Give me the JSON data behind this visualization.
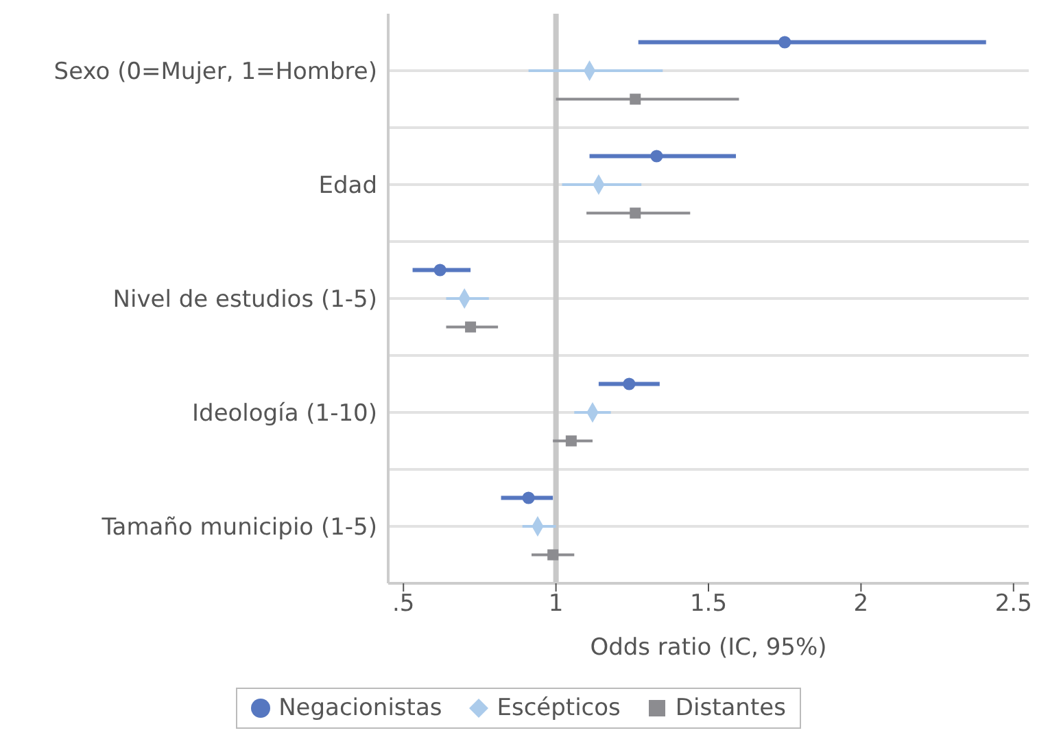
{
  "chart_data": {
    "type": "scatter",
    "orientation": "horizontal",
    "xlabel": "Odds ratio (IC, 95%)",
    "categories": [
      "Sexo (0=Mujer, 1=Hombre)",
      "Edad",
      "Nivel de estudios (1-5)",
      "Ideología (1-10)",
      "Tamaño municipio (1-5)"
    ],
    "series": [
      {
        "name": "Negacionistas",
        "color": "#5677c0",
        "marker": "circle",
        "values": [
          1.75,
          1.33,
          0.62,
          1.24,
          0.91
        ],
        "errors": [
          [
            1.27,
            2.41
          ],
          [
            1.11,
            1.59
          ],
          [
            0.53,
            0.72
          ],
          [
            1.14,
            1.34
          ],
          [
            0.82,
            0.99
          ]
        ]
      },
      {
        "name": "Escépticos",
        "color": "#abcbeb",
        "marker": "diamond",
        "values": [
          1.11,
          1.14,
          0.7,
          1.12,
          0.94
        ],
        "errors": [
          [
            0.91,
            1.35
          ],
          [
            1.02,
            1.28
          ],
          [
            0.64,
            0.78
          ],
          [
            1.06,
            1.18
          ],
          [
            0.89,
            1.0
          ]
        ]
      },
      {
        "name": "Distantes",
        "color": "#8c8c90",
        "marker": "square",
        "values": [
          1.26,
          1.26,
          0.72,
          1.05,
          0.99
        ],
        "errors": [
          [
            1.0,
            1.6
          ],
          [
            1.1,
            1.44
          ],
          [
            0.64,
            0.81
          ],
          [
            0.99,
            1.12
          ],
          [
            0.92,
            1.06
          ]
        ]
      }
    ],
    "xlim": [
      0.45,
      2.55
    ],
    "xticks": [
      {
        "value": 0.5,
        "label": ".5"
      },
      1,
      1.5,
      2,
      2.5
    ],
    "ref_lines": [
      {
        "axis": "x",
        "value": 1,
        "color": "#c8c8c8"
      }
    ],
    "grid": "y",
    "legend": "bottom"
  }
}
